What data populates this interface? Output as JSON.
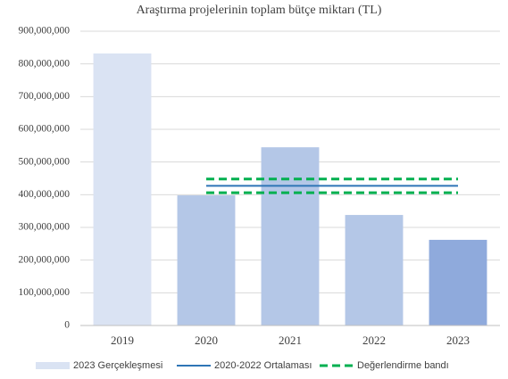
{
  "chart_data": {
    "type": "bar",
    "title": "Araştırma projelerinin toplam bütçe miktarı (TL)",
    "categories": [
      "2019",
      "2020",
      "2021",
      "2022",
      "2023"
    ],
    "series": [
      {
        "name": "2023 Gerçekleşmesi",
        "type": "bar",
        "color": "#dae3f3",
        "colors": [
          "#dae3f3",
          "#b4c7e7",
          "#b4c7e7",
          "#b4c7e7",
          "#8faadc"
        ],
        "values": [
          832000000,
          398000000,
          545000000,
          338000000,
          262000000
        ]
      },
      {
        "name": "2020-2022 Ortalaması",
        "type": "line",
        "color": "#2e75b6",
        "values": [
          null,
          427000000,
          427000000,
          427000000,
          427000000
        ]
      },
      {
        "name": "Değerlendirme bandı",
        "type": "band",
        "color": "#00b050",
        "dashed": true,
        "values": [
          null,
          448000000,
          448000000,
          448000000,
          448000000
        ],
        "values_lower": [
          null,
          406000000,
          406000000,
          406000000,
          406000000
        ]
      }
    ],
    "ylim": [
      0,
      900000000
    ],
    "yticks": [
      0,
      {
        "value": 100000000,
        "label": "100,000,000"
      },
      {
        "value": 200000000,
        "label": "200,000,000"
      },
      {
        "value": 300000000,
        "label": "300,000,000"
      },
      {
        "value": 400000000,
        "label": "400,000,000"
      },
      {
        "value": 500000000,
        "label": "500,000,000"
      },
      {
        "value": 600000000,
        "label": "600,000,000"
      },
      {
        "value": 700000000,
        "label": "700,000,000"
      },
      {
        "value": 800000000,
        "label": "800,000,000"
      },
      {
        "value": 900000000,
        "label": "900,000,000"
      }
    ],
    "grid": true,
    "legend": "bottom"
  }
}
